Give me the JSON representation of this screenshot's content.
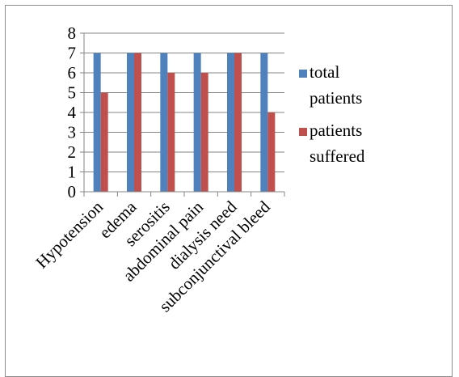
{
  "chart_data": {
    "type": "bar",
    "title": "",
    "xlabel": "",
    "ylabel": "",
    "categories": [
      "Hypotension",
      "edema",
      "serositis",
      "abdominal pain",
      "dialysis need",
      "subconjunctival bleed"
    ],
    "series": [
      {
        "name": "total patients",
        "values": [
          7,
          7,
          7,
          7,
          7,
          7
        ],
        "color": "#4f81bd"
      },
      {
        "name": "patients suffered",
        "values": [
          5,
          7,
          6,
          6,
          7,
          4
        ],
        "color": "#c0504d"
      }
    ],
    "ylim": [
      0,
      8
    ],
    "yticks": [
      0,
      1,
      2,
      3,
      4,
      5,
      6,
      7,
      8
    ],
    "grid": true,
    "legend_position": "right"
  }
}
